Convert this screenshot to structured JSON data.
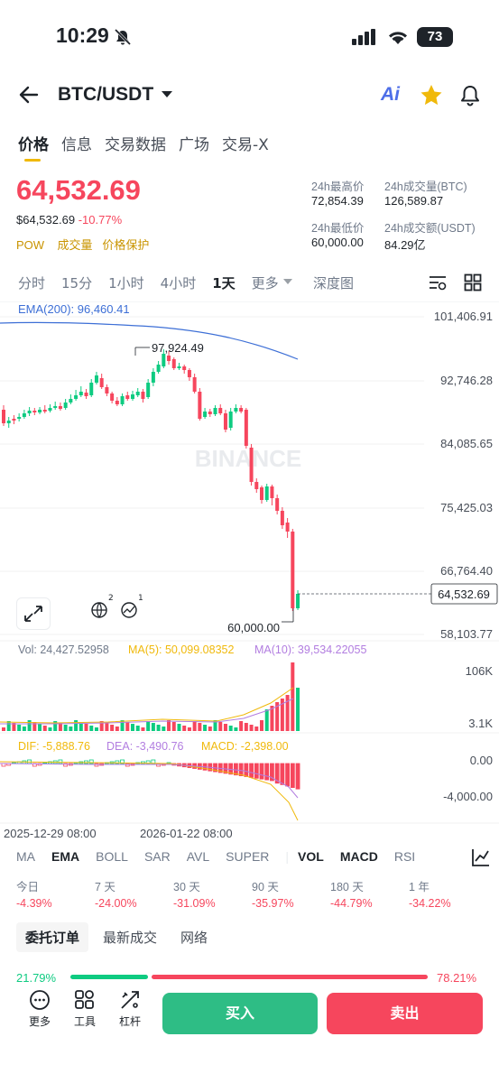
{
  "status_bar": {
    "time": "10:29",
    "battery": "73"
  },
  "header": {
    "pair": "BTC/USDT",
    "ai_label": "Ai"
  },
  "tabs": [
    "价格",
    "信息",
    "交易数据",
    "广场",
    "交易-X"
  ],
  "ticker": {
    "last_price": "64,532.69",
    "usd_price": "$64,532.69",
    "change": "-10.77%",
    "tags": [
      "POW",
      "成交量",
      "价格保护"
    ],
    "high_label": "24h最高价",
    "high": "72,854.39",
    "vol_btc_label": "24h成交量(BTC)",
    "vol_btc": "126,589.87",
    "low_label": "24h最低价",
    "low": "60,000.00",
    "vol_usdt_label": "24h成交额(USDT)",
    "vol_usdt": "84.29亿"
  },
  "intervals": {
    "items": [
      "分时",
      "15分",
      "1小时",
      "4小时",
      "1天",
      "更多"
    ],
    "active": "1天",
    "depth": "深度图"
  },
  "chart": {
    "ema_label": "EMA(200): 96,460.41",
    "price_axis": [
      "101,406.91",
      "92,746.28",
      "84,085.65",
      "75,425.03",
      "66,764.40",
      "58,103.77"
    ],
    "high_marker": "97,924.49",
    "low_marker": "60,000.00",
    "current_tag": "64,532.69",
    "watermark": "BINANCE",
    "vol_label": "Vol: 24,427.52958",
    "ma5_label": "MA(5): 50,099.08352",
    "ma10_label": "MA(10): 39,534.22055",
    "vol_axis": [
      "106K",
      "3.1K"
    ],
    "dif_label": "DIF: -5,888.76",
    "dea_label": "DEA: -3,490.76",
    "macd_label": "MACD: -2,398.00",
    "macd_axis": [
      "0.00",
      "-4,000.00"
    ],
    "date_axis": [
      "2025-12-29 08:00",
      "2026-01-22 08:00"
    ],
    "colors": {
      "up": "#0ecb81",
      "down": "#f6465d",
      "ema": "#3d6fd6",
      "ma5": "#f0b90b",
      "ma10": "#b27de0"
    },
    "badges": [
      "2",
      "1"
    ]
  },
  "indicators": {
    "items": [
      "MA",
      "EMA",
      "BOLL",
      "SAR",
      "AVL",
      "SUPER",
      "VOL",
      "MACD",
      "RSI"
    ],
    "active": [
      "EMA",
      "VOL",
      "MACD"
    ]
  },
  "performance": [
    {
      "label": "今日",
      "value": "-4.39%"
    },
    {
      "label": "7 天",
      "value": "-24.00%"
    },
    {
      "label": "30 天",
      "value": "-31.09%"
    },
    {
      "label": "90 天",
      "value": "-35.97%"
    },
    {
      "label": "180 天",
      "value": "-44.79%"
    },
    {
      "label": "1 年",
      "value": "-34.22%"
    }
  ],
  "order_tabs": [
    "委托订单",
    "最新成交",
    "网络"
  ],
  "ratio": {
    "buy": "21.79%",
    "sell": "78.21%",
    "buy_fraction": 0.2179
  },
  "bottom": {
    "more": "更多",
    "tools": "工具",
    "margin": "杠杆",
    "buy": "买入",
    "sell": "卖出"
  }
}
